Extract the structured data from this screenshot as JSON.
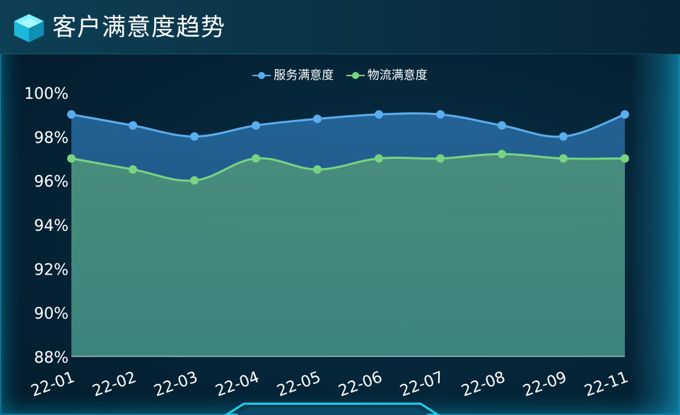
{
  "header": {
    "title": "客户满意度趋势",
    "icon": "layers-cube-icon"
  },
  "colors": {
    "series1": "#5aaeee",
    "series2": "#78d483",
    "axis_text": "#ffffff",
    "accent": "#1fd0f0"
  },
  "chart_data": {
    "type": "area",
    "title": "客户满意度趋势",
    "categories": [
      "22-01",
      "22-02",
      "22-03",
      "22-04",
      "22-05",
      "22-06",
      "22-07",
      "22-08",
      "22-09",
      "22-11"
    ],
    "series": [
      {
        "name": "服务满意度",
        "values": [
          99,
          98.5,
          98,
          98.5,
          98.8,
          99,
          99,
          98.5,
          98,
          99
        ]
      },
      {
        "name": "物流满意度",
        "values": [
          97,
          96.5,
          96,
          97,
          96.5,
          97,
          97,
          97.2,
          97,
          97
        ]
      }
    ],
    "ylim": [
      88,
      100
    ],
    "yticks": [
      "88%",
      "90%",
      "92%",
      "94%",
      "96%",
      "98%",
      "100%"
    ],
    "ytick_values": [
      88,
      90,
      92,
      94,
      96,
      98,
      100
    ],
    "legend_position": "top-center",
    "smooth": true
  }
}
